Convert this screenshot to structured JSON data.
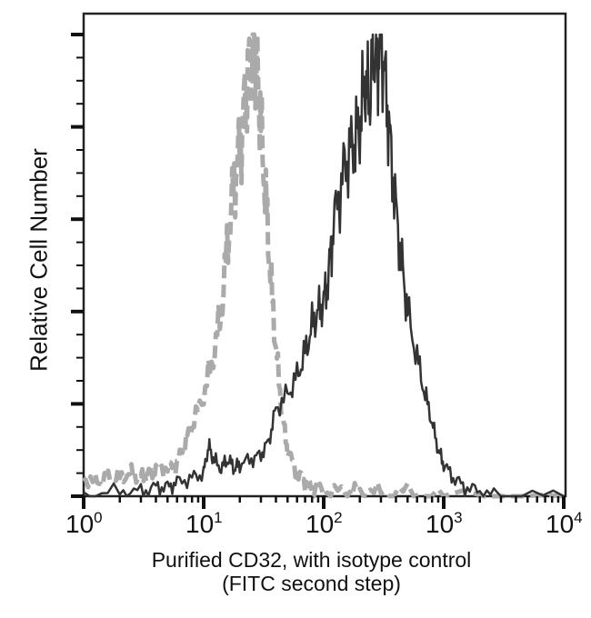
{
  "chart_data": {
    "type": "line",
    "title": "",
    "xlabel": "Purified CD32, with isotype control",
    "xlabel_line2": "(FITC second step)",
    "ylabel": "Relative Cell Number",
    "x_scale": "log",
    "xlim": [
      1,
      10000
    ],
    "x_ticks": [
      "10^0",
      "10^1",
      "10^2",
      "10^3",
      "10^4"
    ],
    "ylim": [
      0,
      105
    ],
    "y_tick_labels": [],
    "grid": false,
    "legend": null,
    "series": [
      {
        "name": "Isotype control",
        "style": "dashed",
        "color": "#aaaaaa",
        "x": [
          1,
          1.3,
          1.6,
          2,
          2.5,
          3,
          3.5,
          4,
          5,
          6,
          7,
          8,
          10,
          12,
          14,
          16,
          18,
          20,
          22,
          24,
          26,
          28,
          30,
          33,
          36,
          40,
          45,
          50,
          60,
          70,
          80,
          100,
          150,
          200,
          300,
          500,
          1000,
          10000
        ],
        "y": [
          4,
          3,
          4,
          4,
          5,
          4,
          5,
          6,
          6,
          7,
          12,
          15,
          22,
          30,
          40,
          56,
          68,
          75,
          85,
          94,
          100,
          92,
          80,
          64,
          48,
          32,
          18,
          10,
          5,
          3,
          2,
          1,
          1,
          1,
          1,
          1,
          0,
          0
        ]
      },
      {
        "name": "Purified CD32",
        "style": "solid",
        "color": "#333333",
        "x": [
          1,
          2,
          3,
          4,
          5,
          6,
          8,
          10,
          11,
          12,
          14,
          16,
          18,
          20,
          25,
          30,
          35,
          40,
          50,
          60,
          70,
          80,
          90,
          100,
          110,
          120,
          140,
          160,
          180,
          200,
          220,
          240,
          260,
          280,
          300,
          330,
          360,
          400,
          450,
          500,
          600,
          700,
          800,
          900,
          1000,
          1200,
          1500,
          2000,
          3000,
          10000
        ],
        "y": [
          0,
          1,
          1,
          2,
          2,
          3,
          4,
          5,
          11,
          8,
          6,
          8,
          6,
          7,
          8,
          9,
          12,
          19,
          22,
          26,
          31,
          37,
          40,
          42,
          48,
          58,
          68,
          74,
          77,
          80,
          90,
          85,
          98,
          92,
          100,
          88,
          76,
          62,
          50,
          40,
          30,
          22,
          16,
          10,
          7,
          4,
          2,
          1,
          0,
          0
        ]
      }
    ]
  }
}
